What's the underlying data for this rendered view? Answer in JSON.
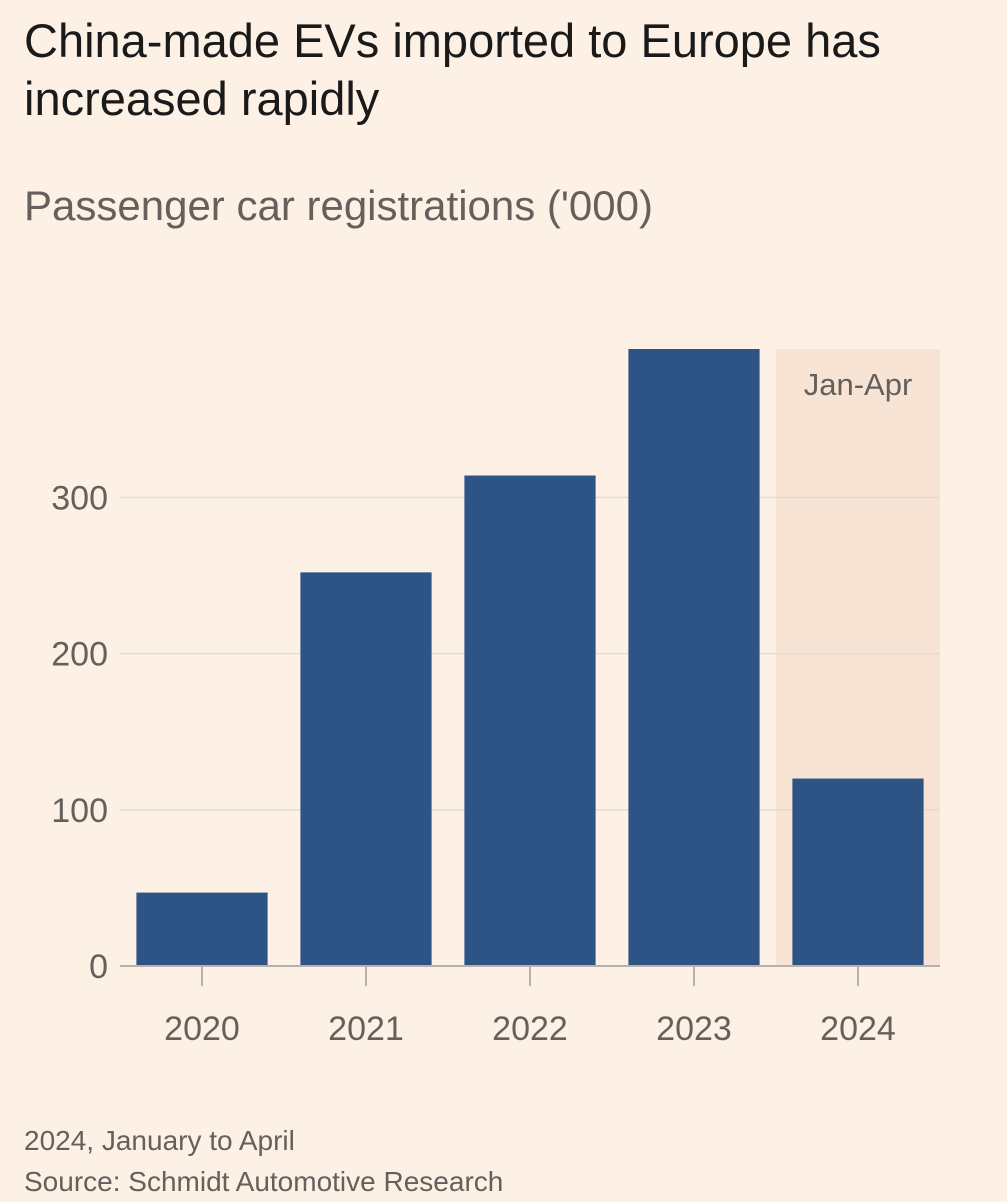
{
  "title": "China-made EVs imported to Europe has increased rapidly",
  "subtitle": "Passenger car registrations ('000)",
  "chart_data": {
    "type": "bar",
    "categories": [
      "2020",
      "2021",
      "2022",
      "2023",
      "2024"
    ],
    "values": [
      47,
      252,
      314,
      395,
      120
    ],
    "ylim": [
      0,
      395
    ],
    "yticks": [
      0,
      100,
      200,
      300
    ],
    "grid": true,
    "highlight": {
      "category": "2024",
      "label": "Jan-Apr"
    },
    "colors": {
      "bar": "#2E5385",
      "highlight": "#F7E4D4",
      "grid": "#E3DCD6",
      "axis": "#B8B0A9",
      "text": "#66605c",
      "background": "#FDF1E6"
    }
  },
  "footnote": {
    "note": "2024, January to April",
    "source": "Source: Schmidt Automotive Research"
  }
}
